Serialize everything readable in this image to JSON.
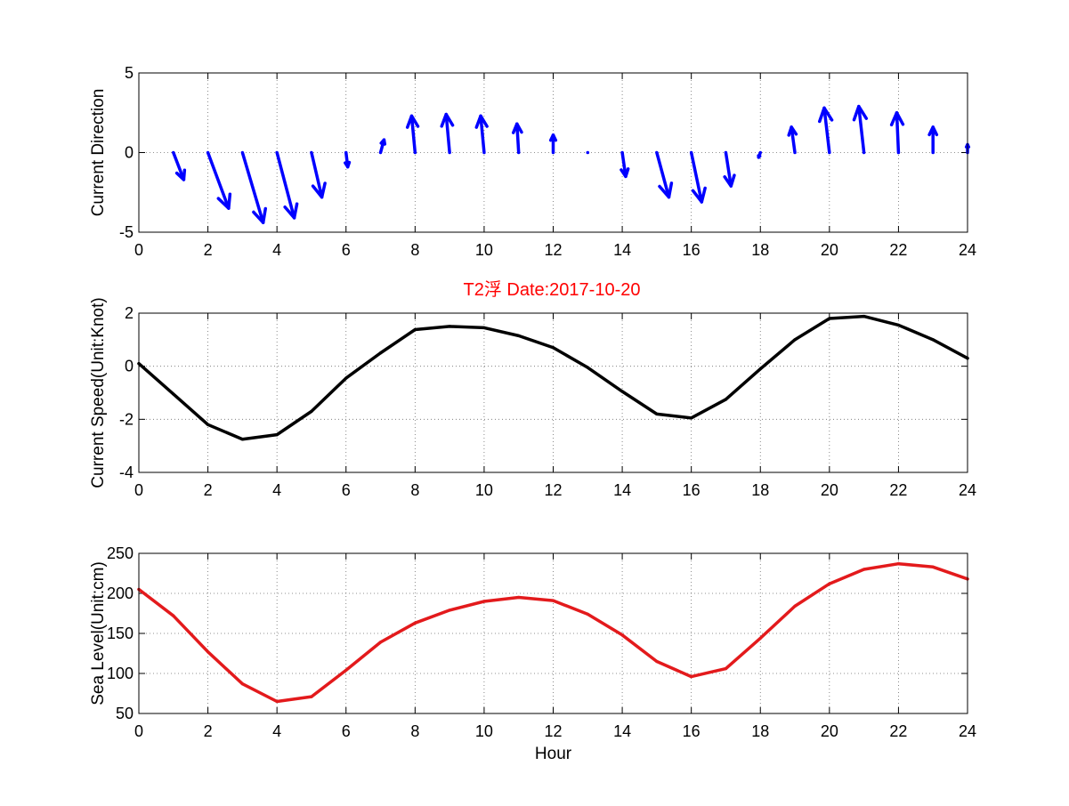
{
  "figure": {
    "title": "T2浮   Date:2017-10-20",
    "title_color": "#ff0000"
  },
  "chart_data": [
    {
      "type": "quiver",
      "id": "direction",
      "title": "",
      "xlabel": "",
      "ylabel": "Current Direction",
      "xlim": [
        0,
        24
      ],
      "ylim": [
        -5,
        5
      ],
      "xticks": [
        0,
        2,
        4,
        6,
        8,
        10,
        12,
        14,
        16,
        18,
        20,
        22,
        24
      ],
      "yticks": [
        -5,
        0,
        5
      ],
      "grid": true,
      "color": "#0000ff",
      "base_y": 0,
      "arrows": [
        {
          "x": 1,
          "u": 0.3,
          "v": -1.7
        },
        {
          "x": 2,
          "u": 0.6,
          "v": -3.5
        },
        {
          "x": 3,
          "u": 0.6,
          "v": -4.4
        },
        {
          "x": 4,
          "u": 0.5,
          "v": -4.1
        },
        {
          "x": 5,
          "u": 0.3,
          "v": -2.8
        },
        {
          "x": 6,
          "u": 0.05,
          "v": -0.9
        },
        {
          "x": 7,
          "u": 0.1,
          "v": 0.8
        },
        {
          "x": 8,
          "u": -0.1,
          "v": 2.3
        },
        {
          "x": 9,
          "u": -0.1,
          "v": 2.4
        },
        {
          "x": 10,
          "u": -0.1,
          "v": 2.3
        },
        {
          "x": 11,
          "u": -0.05,
          "v": 1.8
        },
        {
          "x": 12,
          "u": 0,
          "v": 1.1
        },
        {
          "x": 13,
          "u": 0,
          "v": 0
        },
        {
          "x": 14,
          "u": 0.1,
          "v": -1.5
        },
        {
          "x": 15,
          "u": 0.35,
          "v": -2.8
        },
        {
          "x": 16,
          "u": 0.3,
          "v": -3.1
        },
        {
          "x": 17,
          "u": 0.15,
          "v": -2.1
        },
        {
          "x": 18,
          "u": -0.05,
          "v": -0.3
        },
        {
          "x": 19,
          "u": -0.1,
          "v": 1.6
        },
        {
          "x": 20,
          "u": -0.15,
          "v": 2.8
        },
        {
          "x": 21,
          "u": -0.15,
          "v": 2.9
        },
        {
          "x": 22,
          "u": -0.05,
          "v": 2.5
        },
        {
          "x": 23,
          "u": 0,
          "v": 1.6
        },
        {
          "x": 24,
          "u": 0,
          "v": 0.5
        }
      ]
    },
    {
      "type": "line",
      "id": "speed",
      "title": "",
      "xlabel": "",
      "ylabel": "Current Speed(Unit:Knot)",
      "xlim": [
        0,
        24
      ],
      "ylim": [
        -4,
        2
      ],
      "xticks": [
        0,
        2,
        4,
        6,
        8,
        10,
        12,
        14,
        16,
        18,
        20,
        22,
        24
      ],
      "yticks": [
        -4,
        -2,
        0,
        2
      ],
      "grid": true,
      "color": "#000000",
      "series": [
        {
          "x": [
            0,
            1,
            2,
            3,
            4,
            5,
            6,
            7,
            8,
            9,
            10,
            11,
            12,
            13,
            14,
            15,
            16,
            17,
            18,
            19,
            20,
            21,
            22,
            23,
            24
          ],
          "values": [
            0.1,
            -1.05,
            -2.2,
            -2.75,
            -2.58,
            -1.7,
            -0.45,
            0.5,
            1.38,
            1.5,
            1.45,
            1.15,
            0.7,
            -0.05,
            -0.95,
            -1.8,
            -1.95,
            -1.25,
            -0.1,
            1.0,
            1.8,
            1.88,
            1.55,
            1.0,
            0.3
          ]
        }
      ]
    },
    {
      "type": "line",
      "id": "sealevel",
      "title": "",
      "xlabel": "Hour",
      "ylabel": "Sea Level(Unit:cm)",
      "xlim": [
        0,
        24
      ],
      "ylim": [
        50,
        250
      ],
      "xticks": [
        0,
        2,
        4,
        6,
        8,
        10,
        12,
        14,
        16,
        18,
        20,
        22,
        24
      ],
      "yticks": [
        50,
        100,
        150,
        200,
        250
      ],
      "grid": true,
      "color": "#e31a1c",
      "series": [
        {
          "x": [
            0,
            1,
            2,
            3,
            4,
            5,
            6,
            7,
            8,
            9,
            10,
            11,
            12,
            13,
            14,
            15,
            16,
            17,
            18,
            19,
            20,
            21,
            22,
            23,
            24
          ],
          "values": [
            205,
            172,
            127,
            87,
            65,
            71,
            104,
            139,
            163,
            179,
            190,
            195,
            191,
            174,
            148,
            115,
            96,
            106,
            144,
            184,
            212,
            230,
            237,
            233,
            218
          ]
        }
      ]
    }
  ]
}
